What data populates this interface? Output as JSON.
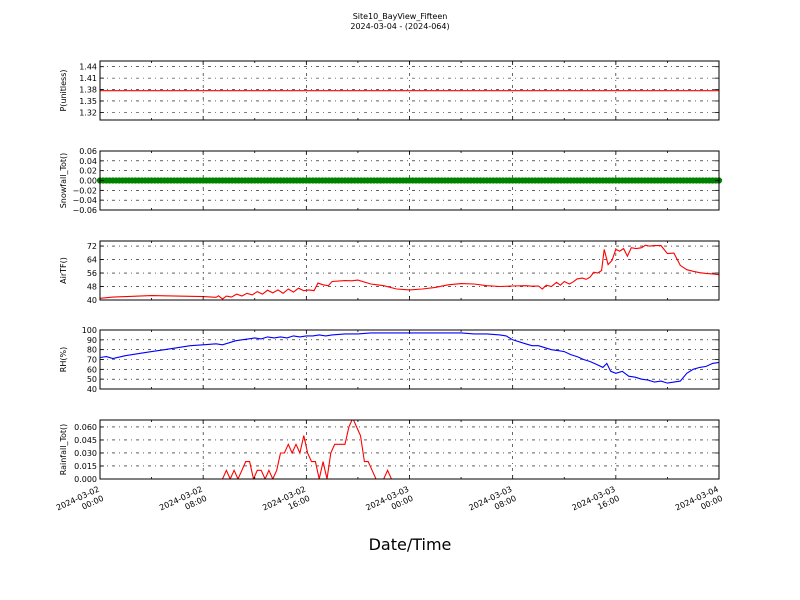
{
  "chart_data": {
    "type": "line",
    "title": "Site10_BayView_Fifteen",
    "subtitle": "2024-03-04 - (2024-064)",
    "xlabel": "Date/Time",
    "x_ticks": [
      [
        "2024-03-02",
        "00:00"
      ],
      [
        "2024-03-02",
        "08:00"
      ],
      [
        "2024-03-02",
        "16:00"
      ],
      [
        "2024-03-03",
        "00:00"
      ],
      [
        "2024-03-03",
        "08:00"
      ],
      [
        "2024-03-03",
        "16:00"
      ],
      [
        "2024-03-04",
        "00:00"
      ]
    ],
    "x_range_hours": [
      0,
      48
    ],
    "grid": true,
    "panels": [
      {
        "ylabel": "P(unitless)",
        "color": "#ff0000",
        "ylim": [
          1.3,
          1.455
        ],
        "yticks": [
          1.32,
          1.35,
          1.38,
          1.41,
          1.44
        ],
        "ytick_labels": [
          "1.32",
          "1.35",
          "1.38",
          "1.41",
          "1.44"
        ],
        "series": [
          [
            0,
            1.377
          ],
          [
            48,
            1.377
          ]
        ]
      },
      {
        "ylabel": "Snowfall_Tot()",
        "color": "#008000",
        "markers": true,
        "ylim": [
          -0.06,
          0.06
        ],
        "yticks": [
          -0.06,
          -0.04,
          -0.02,
          0.0,
          0.02,
          0.04,
          0.06
        ],
        "ytick_labels": [
          "−0.06",
          "−0.04",
          "−0.02",
          "0.00",
          "0.02",
          "0.04",
          "0.06"
        ],
        "series": [
          [
            0,
            0
          ],
          [
            48,
            0
          ]
        ]
      },
      {
        "ylabel": "AirTF()",
        "color": "#ff0000",
        "ylim": [
          40,
          75
        ],
        "yticks": [
          40,
          48,
          56,
          64,
          72
        ],
        "ytick_labels": [
          "40",
          "48",
          "56",
          "64",
          "72"
        ],
        "series": [
          [
            0,
            41
          ],
          [
            1,
            41.7
          ],
          [
            2,
            42
          ],
          [
            3,
            42.3
          ],
          [
            4,
            42.6
          ],
          [
            5,
            42.5
          ],
          [
            6,
            42.3
          ],
          [
            7,
            42.2
          ],
          [
            8,
            42
          ],
          [
            9,
            41.6
          ],
          [
            9.2,
            42.5
          ],
          [
            9.5,
            40.6
          ],
          [
            9.8,
            42.3
          ],
          [
            10.2,
            41.7
          ],
          [
            10.6,
            43.5
          ],
          [
            11,
            42.4
          ],
          [
            11.4,
            44
          ],
          [
            11.8,
            43
          ],
          [
            12.2,
            45
          ],
          [
            12.6,
            43.5
          ],
          [
            13,
            45.8
          ],
          [
            13.4,
            44.2
          ],
          [
            13.8,
            46
          ],
          [
            14.2,
            44
          ],
          [
            14.6,
            46.5
          ],
          [
            15,
            44.7
          ],
          [
            15.4,
            47
          ],
          [
            15.8,
            45.5
          ],
          [
            16.2,
            46
          ],
          [
            16.6,
            45.6
          ],
          [
            16.9,
            50
          ],
          [
            17.3,
            49
          ],
          [
            17.7,
            48.5
          ],
          [
            18,
            51
          ],
          [
            19,
            51.5
          ],
          [
            19.5,
            51.4
          ],
          [
            20,
            51.8
          ],
          [
            21,
            49.5
          ],
          [
            21.5,
            49
          ],
          [
            22,
            48.5
          ],
          [
            23,
            46.5
          ],
          [
            24,
            46
          ],
          [
            25,
            46.5
          ],
          [
            26,
            47.5
          ],
          [
            27,
            49
          ],
          [
            28,
            49.7
          ],
          [
            29,
            49.5
          ],
          [
            30,
            48.5
          ],
          [
            31,
            48
          ],
          [
            32,
            48.3
          ],
          [
            33,
            48.5
          ],
          [
            33.5,
            48.2
          ],
          [
            34,
            48.3
          ],
          [
            34.3,
            46.5
          ],
          [
            34.6,
            48.8
          ],
          [
            35,
            48
          ],
          [
            35.4,
            50.5
          ],
          [
            35.7,
            48.8
          ],
          [
            36,
            51
          ],
          [
            36.4,
            49.5
          ],
          [
            36.7,
            50.8
          ],
          [
            37,
            52.5
          ],
          [
            37.4,
            53
          ],
          [
            37.7,
            52.3
          ],
          [
            38,
            53.5
          ],
          [
            38.3,
            56.5
          ],
          [
            38.6,
            56
          ],
          [
            38.9,
            57.5
          ],
          [
            39.1,
            70
          ],
          [
            39.4,
            61
          ],
          [
            39.7,
            63.5
          ],
          [
            40,
            70
          ],
          [
            40.3,
            69
          ],
          [
            40.6,
            70.5
          ],
          [
            40.9,
            66
          ],
          [
            41.2,
            71
          ],
          [
            41.6,
            70.5
          ],
          [
            42,
            71
          ],
          [
            42.3,
            72.5
          ],
          [
            42.6,
            72
          ],
          [
            43,
            72.3
          ],
          [
            43.5,
            72.3
          ],
          [
            44,
            67.5
          ],
          [
            44.5,
            67.8
          ],
          [
            45,
            60.5
          ],
          [
            45.5,
            58
          ],
          [
            46,
            57
          ],
          [
            46.5,
            56.2
          ],
          [
            47,
            55.8
          ],
          [
            47.5,
            55.5
          ],
          [
            48,
            55
          ],
          [
            48.5,
            54
          ],
          [
            49,
            52.2
          ],
          [
            49.5,
            53.3
          ],
          [
            50,
            52.5
          ],
          [
            50.3,
            54
          ]
        ]
      },
      {
        "ylabel": "RH(%)",
        "color": "#0000ff",
        "ylim": [
          40,
          100
        ],
        "yticks": [
          40,
          50,
          60,
          70,
          80,
          90,
          100
        ],
        "ytick_labels": [
          "40",
          "50",
          "60",
          "70",
          "80",
          "90",
          "100"
        ],
        "series": [
          [
            0,
            72
          ],
          [
            0.5,
            73
          ],
          [
            1,
            71
          ],
          [
            2,
            74
          ],
          [
            3,
            76
          ],
          [
            4,
            78
          ],
          [
            5,
            80
          ],
          [
            6,
            82
          ],
          [
            7,
            84
          ],
          [
            8,
            85
          ],
          [
            9,
            86
          ],
          [
            9.5,
            85
          ],
          [
            10,
            87
          ],
          [
            10.5,
            89
          ],
          [
            11,
            90
          ],
          [
            11.5,
            91
          ],
          [
            12,
            92
          ],
          [
            12.5,
            91
          ],
          [
            13,
            93
          ],
          [
            13.5,
            92
          ],
          [
            14,
            93
          ],
          [
            14.5,
            92
          ],
          [
            15,
            94
          ],
          [
            15.5,
            93
          ],
          [
            16,
            94
          ],
          [
            16.5,
            94
          ],
          [
            17,
            95
          ],
          [
            17.5,
            94
          ],
          [
            18,
            95
          ],
          [
            19,
            96
          ],
          [
            20,
            96
          ],
          [
            21,
            97
          ],
          [
            22,
            97
          ],
          [
            23,
            97
          ],
          [
            24,
            97
          ],
          [
            25,
            97
          ],
          [
            26,
            97
          ],
          [
            27,
            97
          ],
          [
            28,
            97
          ],
          [
            29,
            96
          ],
          [
            30,
            96
          ],
          [
            31,
            95
          ],
          [
            31.5,
            94
          ],
          [
            32,
            90
          ],
          [
            33,
            86
          ],
          [
            33.5,
            84
          ],
          [
            34,
            84
          ],
          [
            34.5,
            82
          ],
          [
            35,
            80
          ],
          [
            35.5,
            79
          ],
          [
            36,
            78
          ],
          [
            36.5,
            75
          ],
          [
            37,
            73
          ],
          [
            37.5,
            70
          ],
          [
            38,
            68
          ],
          [
            38.5,
            65
          ],
          [
            39,
            62
          ],
          [
            39.3,
            66
          ],
          [
            39.6,
            58
          ],
          [
            40,
            56
          ],
          [
            40.5,
            58
          ],
          [
            41,
            53
          ],
          [
            41.5,
            52
          ],
          [
            42,
            50
          ],
          [
            42.5,
            49
          ],
          [
            43,
            47
          ],
          [
            43.5,
            48
          ],
          [
            44,
            46
          ],
          [
            44.5,
            47
          ],
          [
            45,
            48
          ],
          [
            45.5,
            56
          ],
          [
            46,
            60
          ],
          [
            46.5,
            62
          ],
          [
            47,
            63
          ],
          [
            47.5,
            66
          ],
          [
            48,
            67
          ],
          [
            48.5,
            69
          ],
          [
            49,
            73
          ],
          [
            49.5,
            77
          ],
          [
            50,
            76
          ],
          [
            50.3,
            74
          ]
        ]
      },
      {
        "ylabel": "Rainfall_Tot()",
        "color": "#ff0000",
        "ylim": [
          0,
          0.068
        ],
        "yticks": [
          0.0,
          0.015,
          0.03,
          0.045,
          0.06
        ],
        "ytick_labels": [
          "0.000",
          "0.015",
          "0.030",
          "0.045",
          "0.060"
        ],
        "series": [
          [
            0,
            0
          ],
          [
            9.5,
            0
          ],
          [
            9.8,
            0.01
          ],
          [
            10.1,
            0
          ],
          [
            10.4,
            0.01
          ],
          [
            10.7,
            0
          ],
          [
            11.0,
            0.01
          ],
          [
            11.3,
            0.02
          ],
          [
            11.6,
            0.02
          ],
          [
            11.9,
            0
          ],
          [
            12.2,
            0.01
          ],
          [
            12.5,
            0.01
          ],
          [
            12.8,
            0
          ],
          [
            13.1,
            0.01
          ],
          [
            13.4,
            0
          ],
          [
            13.7,
            0.01
          ],
          [
            14.0,
            0.03
          ],
          [
            14.3,
            0.03
          ],
          [
            14.6,
            0.04
          ],
          [
            14.9,
            0.03
          ],
          [
            15.2,
            0.04
          ],
          [
            15.5,
            0.03
          ],
          [
            15.8,
            0.05
          ],
          [
            16.1,
            0.03
          ],
          [
            16.4,
            0.02
          ],
          [
            16.7,
            0.02
          ],
          [
            17.0,
            0
          ],
          [
            17.3,
            0.02
          ],
          [
            17.6,
            0
          ],
          [
            17.9,
            0.03
          ],
          [
            18.2,
            0.04
          ],
          [
            18.5,
            0.04
          ],
          [
            19.0,
            0.04
          ],
          [
            19.3,
            0.06
          ],
          [
            19.6,
            0.07
          ],
          [
            19.9,
            0.06
          ],
          [
            20.2,
            0.05
          ],
          [
            20.5,
            0.02
          ],
          [
            20.8,
            0.02
          ],
          [
            21.1,
            0.01
          ],
          [
            21.4,
            0
          ],
          [
            21.7,
            0
          ],
          [
            22.0,
            0
          ],
          [
            22.3,
            0.01
          ],
          [
            22.6,
            0
          ],
          [
            22.9,
            0
          ],
          [
            50.3,
            0
          ]
        ]
      }
    ]
  }
}
